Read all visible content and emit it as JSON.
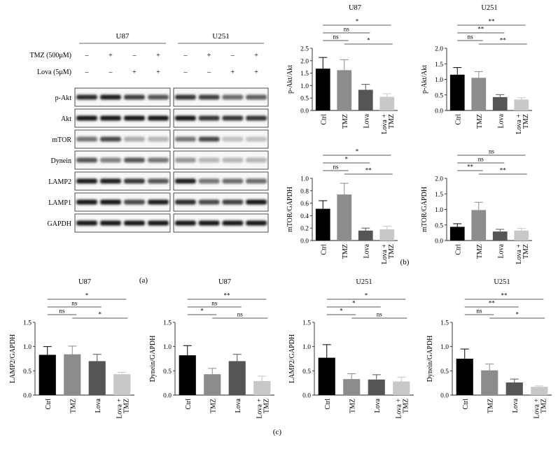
{
  "western_blot": {
    "groups": [
      "U87",
      "U251"
    ],
    "treatment_rows": [
      {
        "label": "TMZ (500μM)",
        "marks": [
          "–",
          "+",
          "–",
          "+"
        ]
      },
      {
        "label": "Lova (5μM)",
        "marks": [
          "–",
          "–",
          "+",
          "+"
        ]
      }
    ],
    "bands": [
      {
        "label": "p-Akt",
        "u87": [
          0.9,
          0.95,
          0.8,
          0.7
        ],
        "u251": [
          0.85,
          0.8,
          0.6,
          0.65
        ]
      },
      {
        "label": "Akt",
        "u87": [
          1.0,
          1.0,
          1.0,
          1.0
        ],
        "u251": [
          1.0,
          0.85,
          0.85,
          0.85
        ]
      },
      {
        "label": "mTOR",
        "u87": [
          0.55,
          0.75,
          0.3,
          0.25
        ],
        "u251": [
          0.55,
          0.75,
          0.2,
          0.2
        ]
      },
      {
        "label": "Dynein",
        "u87": [
          0.7,
          0.5,
          0.7,
          0.55
        ],
        "u251": [
          0.4,
          0.25,
          0.25,
          0.25
        ]
      },
      {
        "label": "LAMP2",
        "u87": [
          0.95,
          0.95,
          0.85,
          0.7
        ],
        "u251": [
          0.95,
          0.55,
          0.6,
          0.6
        ]
      },
      {
        "label": "LAMP1",
        "u87": [
          1.0,
          1.0,
          0.75,
          0.95
        ],
        "u251": [
          0.9,
          0.75,
          0.8,
          1.0
        ]
      },
      {
        "label": "GAPDH",
        "u87": [
          1.0,
          1.0,
          1.0,
          1.0
        ],
        "u251": [
          1.0,
          1.0,
          1.0,
          1.0
        ]
      }
    ]
  },
  "panel_labels": {
    "a": "(a)",
    "b": "(b)",
    "c": "(c)"
  },
  "colors": [
    "#000000",
    "#8c8c8c",
    "#555555",
    "#c8c8c8"
  ],
  "chart_data": [
    {
      "type": "bar",
      "panel": "b",
      "title": "U87",
      "ylabel": "p-Akt/Akt",
      "categories": [
        "Ctrl",
        "TMZ",
        "Lova",
        "Lova + TMZ"
      ],
      "values": [
        1.68,
        1.62,
        0.83,
        0.55
      ],
      "errors": [
        0.45,
        0.42,
        0.22,
        0.12
      ],
      "ylim": [
        0,
        2.5
      ],
      "yticks": [
        "0.0",
        "0.5",
        "1.0",
        "1.5",
        "2.0",
        "2.5"
      ],
      "significance": [
        {
          "from": 0,
          "to": 1,
          "label": "ns"
        },
        {
          "from": 0,
          "to": 2,
          "label": "ns"
        },
        {
          "from": 0,
          "to": 3,
          "label": "*"
        },
        {
          "from": 1,
          "to": 3,
          "label": "*"
        }
      ]
    },
    {
      "type": "bar",
      "panel": "b",
      "title": "U251",
      "ylabel": "p-Akt/Akt",
      "categories": [
        "Ctrl",
        "TMZ",
        "Lova",
        "Lova + TMZ"
      ],
      "values": [
        1.15,
        1.05,
        0.43,
        0.35
      ],
      "errors": [
        0.23,
        0.2,
        0.08,
        0.06
      ],
      "ylim": [
        0,
        2.0
      ],
      "yticks": [
        "0.0",
        "0.5",
        "1.0",
        "1.5",
        "2.0"
      ],
      "significance": [
        {
          "from": 0,
          "to": 1,
          "label": "ns"
        },
        {
          "from": 0,
          "to": 2,
          "label": "**"
        },
        {
          "from": 0,
          "to": 3,
          "label": "**"
        },
        {
          "from": 1,
          "to": 3,
          "label": "**"
        }
      ]
    },
    {
      "type": "bar",
      "panel": "b",
      "title": "",
      "ylabel": "mTOR/GAPDH",
      "categories": [
        "Ctrl",
        "TMZ",
        "Lova",
        "Lova + TMZ"
      ],
      "values": [
        0.51,
        0.74,
        0.16,
        0.18
      ],
      "errors": [
        0.13,
        0.18,
        0.04,
        0.05
      ],
      "ylim": [
        0,
        1.0
      ],
      "yticks": [
        "0.0",
        "0.2",
        "0.4",
        "0.6",
        "0.8",
        "1.0"
      ],
      "significance": [
        {
          "from": 0,
          "to": 1,
          "label": "ns"
        },
        {
          "from": 0,
          "to": 2,
          "label": "*"
        },
        {
          "from": 0,
          "to": 3,
          "label": "*"
        },
        {
          "from": 1,
          "to": 3,
          "label": "**"
        }
      ]
    },
    {
      "type": "bar",
      "panel": "b",
      "title": "",
      "ylabel": "mTOR/GAPDH",
      "categories": [
        "Ctrl",
        "TMZ",
        "Lova",
        "Lova + TMZ"
      ],
      "values": [
        0.44,
        0.98,
        0.29,
        0.32
      ],
      "errors": [
        0.1,
        0.25,
        0.07,
        0.07
      ],
      "ylim": [
        0,
        2.0
      ],
      "yticks": [
        "0.0",
        "0.5",
        "1.0",
        "1.5",
        "2.0"
      ],
      "significance": [
        {
          "from": 0,
          "to": 1,
          "label": "**"
        },
        {
          "from": 0,
          "to": 2,
          "label": "ns"
        },
        {
          "from": 0,
          "to": 3,
          "label": "ns"
        },
        {
          "from": 1,
          "to": 3,
          "label": "**"
        }
      ]
    },
    {
      "type": "bar",
      "panel": "c",
      "title": "U87",
      "ylabel": "LAMP2/GAPDH",
      "categories": [
        "Ctrl",
        "TMZ",
        "Lova",
        "Lova + TMZ"
      ],
      "values": [
        0.83,
        0.84,
        0.7,
        0.43
      ],
      "errors": [
        0.17,
        0.17,
        0.14,
        0.04
      ],
      "ylim": [
        0,
        1.5
      ],
      "yticks": [
        "0.0",
        "0.5",
        "1.0",
        "1.5"
      ],
      "significance": [
        {
          "from": 0,
          "to": 1,
          "label": "ns"
        },
        {
          "from": 0,
          "to": 2,
          "label": "ns"
        },
        {
          "from": 0,
          "to": 3,
          "label": "*"
        },
        {
          "from": 1,
          "to": 3,
          "label": "*"
        }
      ]
    },
    {
      "type": "bar",
      "panel": "c",
      "title": "U87",
      "ylabel": "Dynein/GAPDH",
      "categories": [
        "Ctrl",
        "TMZ",
        "Lova",
        "Lova + TMZ"
      ],
      "values": [
        0.82,
        0.43,
        0.7,
        0.29
      ],
      "errors": [
        0.2,
        0.12,
        0.14,
        0.1
      ],
      "ylim": [
        0,
        1.5
      ],
      "yticks": [
        "0.0",
        "0.5",
        "1.0",
        "1.5"
      ],
      "significance": [
        {
          "from": 0,
          "to": 1,
          "label": "*"
        },
        {
          "from": 0,
          "to": 2,
          "label": "ns"
        },
        {
          "from": 0,
          "to": 3,
          "label": "**"
        },
        {
          "from": 1,
          "to": 3,
          "label": "ns"
        }
      ]
    },
    {
      "type": "bar",
      "panel": "c",
      "title": "U251",
      "ylabel": "LAMP2/GAPDH",
      "categories": [
        "Ctrl",
        "TMZ",
        "Lova",
        "Lova + TMZ"
      ],
      "values": [
        0.77,
        0.33,
        0.32,
        0.28
      ],
      "errors": [
        0.27,
        0.11,
        0.1,
        0.09
      ],
      "ylim": [
        0,
        1.5
      ],
      "yticks": [
        "0.0",
        "0.5",
        "1.0",
        "1.5"
      ],
      "significance": [
        {
          "from": 0,
          "to": 1,
          "label": "*"
        },
        {
          "from": 0,
          "to": 2,
          "label": "*"
        },
        {
          "from": 0,
          "to": 3,
          "label": "*"
        },
        {
          "from": 1,
          "to": 3,
          "label": "ns"
        }
      ]
    },
    {
      "type": "bar",
      "panel": "c",
      "title": "U251",
      "ylabel": "Dynein/GAPDH",
      "categories": [
        "Ctrl",
        "TMZ",
        "Lova",
        "Lova + TMZ"
      ],
      "values": [
        0.75,
        0.51,
        0.26,
        0.17
      ],
      "errors": [
        0.2,
        0.13,
        0.07,
        0.02
      ],
      "ylim": [
        0,
        1.5
      ],
      "yticks": [
        "0.0",
        "0.5",
        "1.0",
        "1.5"
      ],
      "significance": [
        {
          "from": 0,
          "to": 1,
          "label": "ns"
        },
        {
          "from": 0,
          "to": 2,
          "label": "**"
        },
        {
          "from": 0,
          "to": 3,
          "label": "**"
        },
        {
          "from": 1,
          "to": 3,
          "label": "*"
        }
      ]
    }
  ]
}
